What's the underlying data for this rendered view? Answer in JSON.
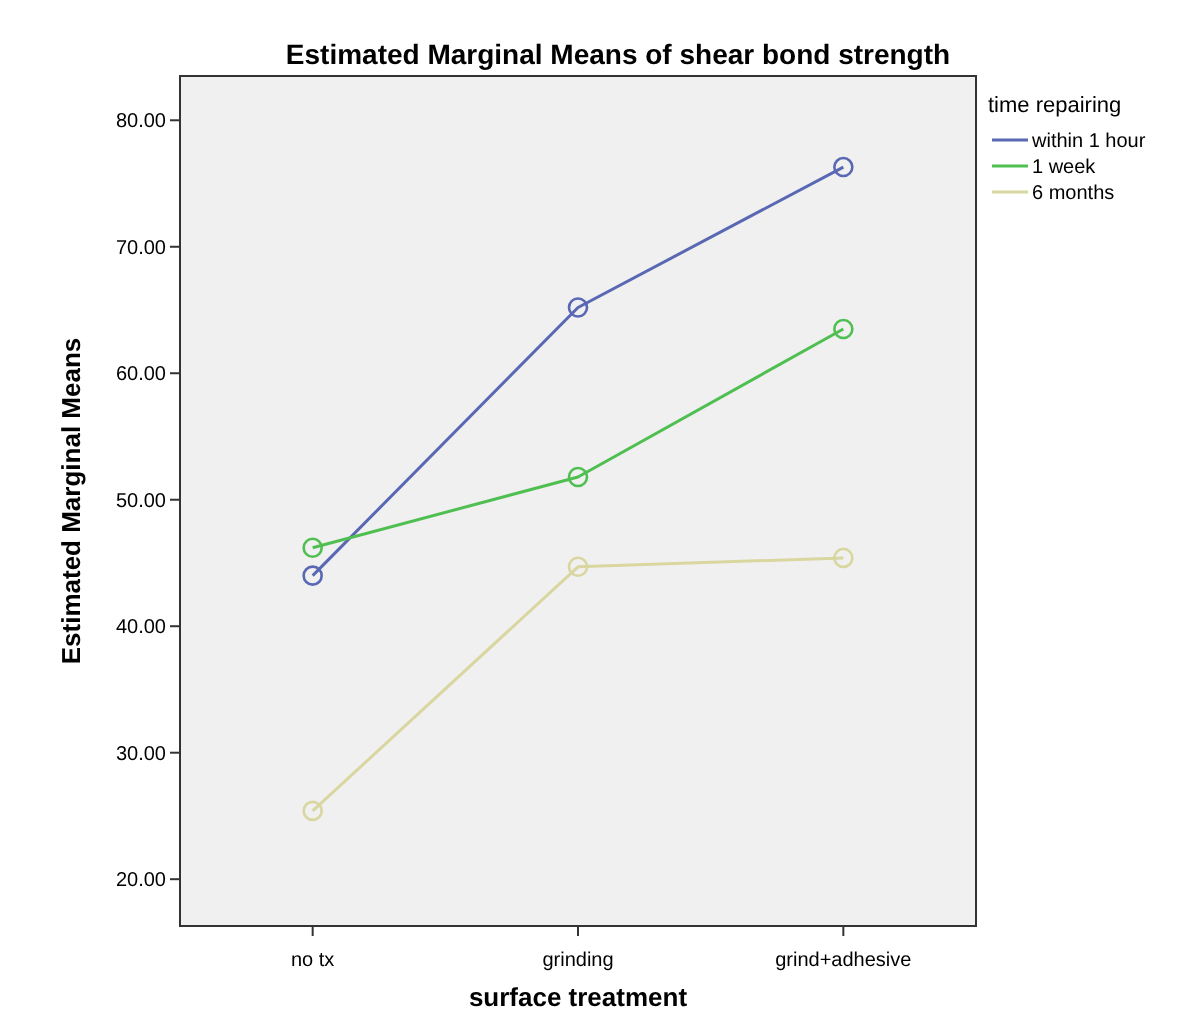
{
  "chart_data": {
    "type": "line",
    "title": "Estimated Marginal Means of shear bond strength",
    "xlabel": "surface treatment",
    "ylabel": "Estimated Marginal Means",
    "legend_title": "time repairing",
    "categories": [
      "no tx",
      "grinding",
      "grind+adhesive"
    ],
    "series": [
      {
        "name": "within 1 hour",
        "color": "#5a68b4",
        "values": [
          44.0,
          65.2,
          76.3
        ]
      },
      {
        "name": "1 week",
        "color": "#4fbf52",
        "values": [
          46.2,
          51.8,
          63.5
        ]
      },
      {
        "name": "6 months",
        "color": "#d9d6a0",
        "values": [
          25.4,
          44.7,
          45.4
        ]
      }
    ],
    "ylim": [
      16.3,
      83.5
    ],
    "yticks": [
      {
        "value": 20,
        "label": "20.00"
      },
      {
        "value": 30,
        "label": "30.00"
      },
      {
        "value": 40,
        "label": "40.00"
      },
      {
        "value": 50,
        "label": "50.00"
      },
      {
        "value": 60,
        "label": "60.00"
      },
      {
        "value": 70,
        "label": "70.00"
      },
      {
        "value": 80,
        "label": "80.00"
      }
    ],
    "legend": "top right",
    "marker": "circle",
    "grid": false
  }
}
